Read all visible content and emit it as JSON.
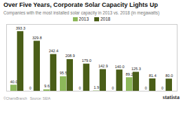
{
  "chart_data": {
    "type": "bar",
    "title": "Over Five Years, Corporate Solar Capacity Lights Up",
    "subtitle": "Companies with the most installed solar capacity in 2013 vs. 2018 (in megawatts)",
    "categories": [
      null,
      null,
      null,
      null,
      null,
      null,
      null,
      null,
      null,
      null
    ],
    "series": [
      {
        "name": "2013",
        "color": "#8db85a",
        "values": [
          40.0,
          0,
          9.6,
          95.5,
          0,
          1.9,
          0,
          89.2,
          0,
          0
        ],
        "value_labels": [
          "40.0",
          "0",
          "9.6",
          "95.5",
          "0",
          "1.9",
          "0",
          "89.2",
          "0",
          "0"
        ]
      },
      {
        "name": "2018",
        "color": "#4a5e18",
        "values": [
          393.3,
          329.8,
          242.4,
          208.9,
          179.0,
          142.9,
          140.0,
          125.3,
          81.4,
          80.0
        ],
        "value_labels": [
          "393.3",
          "329.8",
          "242.4",
          "208.9",
          "179.0",
          "142.9",
          "140.0",
          "125.3",
          "81.4",
          "80.0"
        ]
      }
    ],
    "ylim": [
      0,
      440
    ],
    "tick_labels": false,
    "data_labels": true,
    "legend": "top",
    "annotations": [
      "©ChartsBranch   Source: SEIA",
      "statista"
    ]
  }
}
